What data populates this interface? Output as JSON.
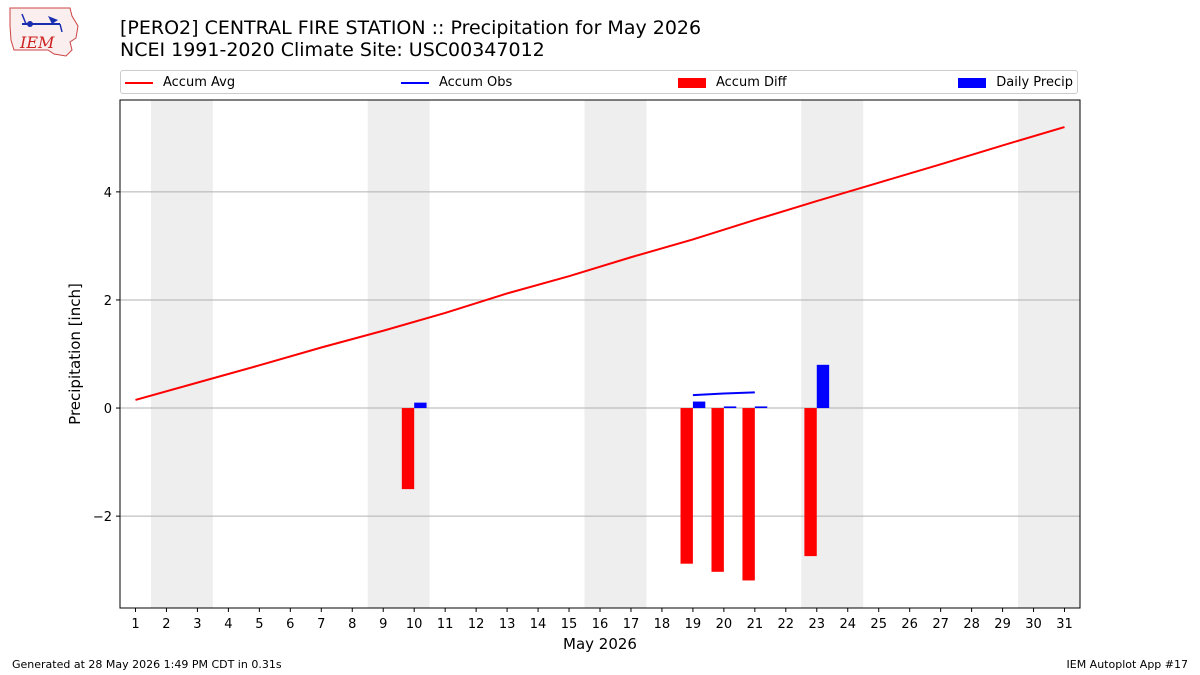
{
  "title_line1": "[PERO2] CENTRAL FIRE STATION :: Precipitation for May 2026",
  "title_line2": "NCEI 1991-2020 Climate Site: USC00347012",
  "logo_text": "IEM",
  "legend": {
    "accum_avg": "Accum Avg",
    "accum_obs": "Accum Obs",
    "accum_diff": "Accum Diff",
    "daily_precip": "Daily Precip"
  },
  "footer": {
    "left": "Generated at 28 May 2026 1:49 PM CDT in 0.31s",
    "right": "IEM Autoplot App #17"
  },
  "colors": {
    "accum_avg": "#ff0000",
    "accum_obs": "#0000ff",
    "accum_diff": "#ff0000",
    "daily_precip": "#0000ff",
    "weekend_band": "#eeeeee",
    "grid": "#b0b0b0"
  },
  "chart_data": {
    "type": "bar",
    "xlabel": "May 2026",
    "ylabel": "Precipitation [inch]",
    "xlim": [
      0.5,
      31.5
    ],
    "ylim": [
      -3.7,
      5.7
    ],
    "x_ticks": [
      1,
      2,
      3,
      4,
      5,
      6,
      7,
      8,
      9,
      10,
      11,
      12,
      13,
      14,
      15,
      16,
      17,
      18,
      19,
      20,
      21,
      22,
      23,
      24,
      25,
      26,
      27,
      28,
      29,
      30,
      31
    ],
    "y_ticks": [
      -2,
      0,
      2,
      4
    ],
    "y_tick_labels": [
      "−2",
      "0",
      "2",
      "4"
    ],
    "grid": "horizontal",
    "weekend_bands": [
      [
        1.5,
        3.5
      ],
      [
        8.5,
        10.5
      ],
      [
        15.5,
        17.5
      ],
      [
        22.5,
        24.5
      ],
      [
        29.5,
        31.5
      ]
    ],
    "accum_avg": {
      "x": [
        1,
        3,
        5,
        7,
        9,
        11,
        13,
        15,
        17,
        19,
        21,
        23,
        25,
        27,
        29,
        31
      ],
      "y": [
        0.15,
        0.47,
        0.79,
        1.12,
        1.43,
        1.76,
        2.12,
        2.44,
        2.79,
        3.12,
        3.48,
        3.83,
        4.17,
        4.51,
        4.86,
        5.2
      ]
    },
    "accum_obs": {
      "x": [
        19,
        20,
        21
      ],
      "y": [
        0.24,
        0.27,
        0.29
      ]
    },
    "accum_diff": [
      {
        "day": 10,
        "value": -1.5
      },
      {
        "day": 19,
        "value": -2.88
      },
      {
        "day": 20,
        "value": -3.03
      },
      {
        "day": 21,
        "value": -3.19
      },
      {
        "day": 23,
        "value": -2.74
      }
    ],
    "daily_precip": [
      {
        "day": 10,
        "value": 0.1
      },
      {
        "day": 19,
        "value": 0.12
      },
      {
        "day": 20,
        "value": 0.03
      },
      {
        "day": 21,
        "value": 0.03
      },
      {
        "day": 23,
        "value": 0.8
      }
    ]
  }
}
